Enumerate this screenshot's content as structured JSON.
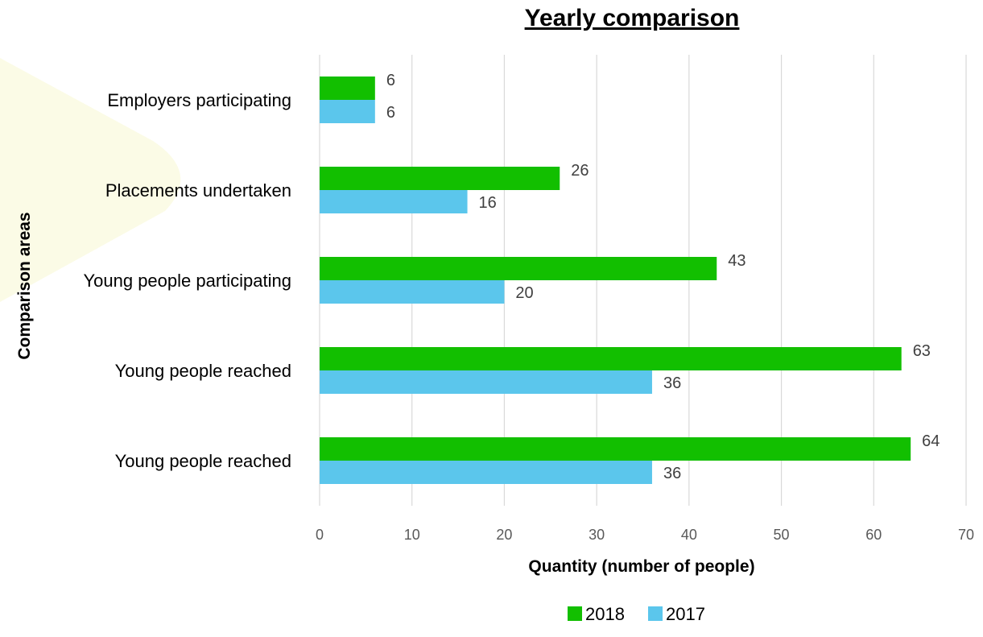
{
  "chart_data": {
    "type": "bar",
    "orientation": "horizontal",
    "title": "Yearly comparison",
    "xlabel": "Quantity (number of people)",
    "ylabel": "Comparison areas",
    "categories": [
      "Employers participating",
      "Placements undertaken",
      "Young people participating",
      "Young people reached ",
      "Young people reached"
    ],
    "series": [
      {
        "name": "2018",
        "color": "#12bf00",
        "values": [
          6,
          26,
          43,
          63,
          64
        ]
      },
      {
        "name": "2017",
        "color": "#5bc6ec",
        "values": [
          6,
          16,
          20,
          36,
          36
        ]
      }
    ],
    "xlim": [
      0,
      70
    ],
    "xticks": [
      "0",
      "10",
      "20",
      "30",
      "40",
      "50",
      "60",
      "70"
    ],
    "grid": true,
    "legend_position": "bottom",
    "data_labels": true
  },
  "decoration": {
    "background_shape_color": "#fbfbe6"
  }
}
